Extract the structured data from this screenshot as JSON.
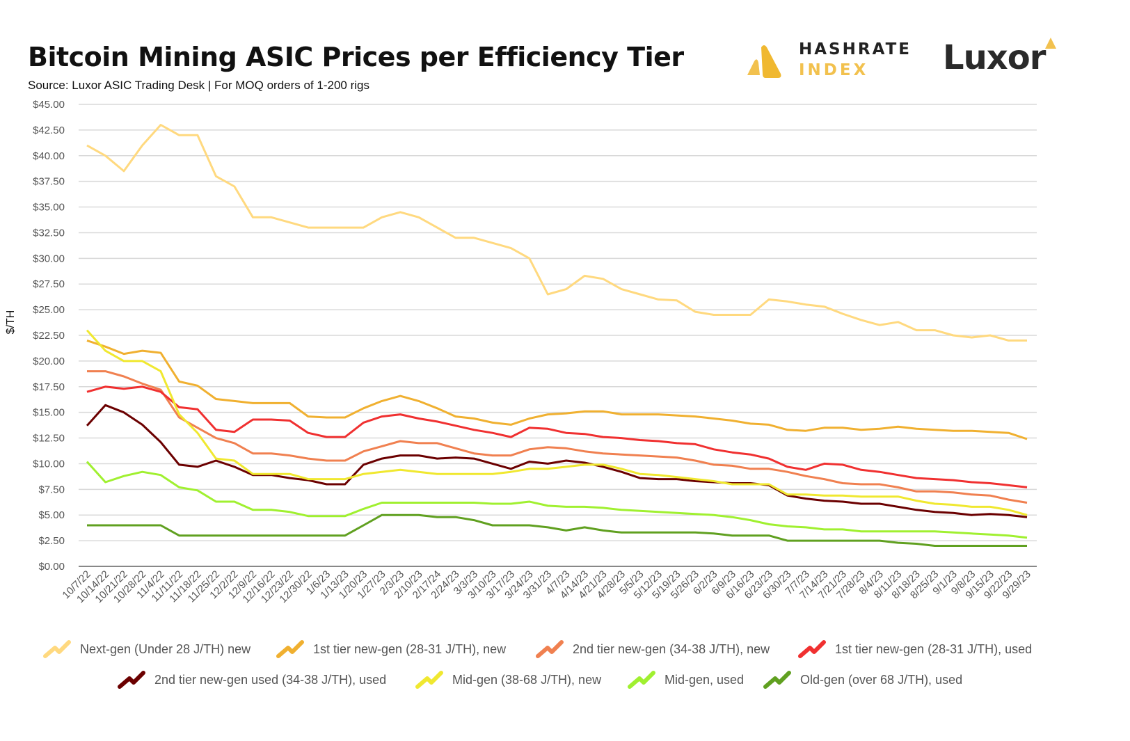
{
  "header": {
    "title": "Bitcoin Mining ASIC Prices per Efficiency Tier",
    "subtitle": "Source: Luxor ASIC Trading Desk | For MOQ orders of 1-200 rigs",
    "logos": [
      "HASHRATE INDEX",
      "Luxor"
    ]
  },
  "chart_data": {
    "type": "line",
    "title": "Bitcoin Mining ASIC Prices per Efficiency Tier",
    "subtitle": "Source: Luxor ASIC Trading Desk | For MOQ orders of 1-200 rigs",
    "xlabel": "",
    "ylabel": "$/TH",
    "ylim": [
      0,
      45
    ],
    "yticks": [
      "$0.00",
      "$2.50",
      "$5.00",
      "$7.50",
      "$10.00",
      "$12.50",
      "$15.00",
      "$17.50",
      "$20.00",
      "$22.50",
      "$25.00",
      "$27.50",
      "$30.00",
      "$32.50",
      "$35.00",
      "$37.50",
      "$40.00",
      "$42.50",
      "$45.00"
    ],
    "grid": true,
    "legend": "bottom",
    "categories": [
      "10/7/22",
      "10/14/22",
      "10/21/22",
      "10/28/22",
      "11/4/22",
      "11/11/22",
      "11/18/22",
      "11/25/22",
      "12/2/22",
      "12/9/22",
      "12/16/22",
      "12/23/22",
      "12/30/22",
      "1/6/23",
      "1/13/23",
      "1/20/23",
      "1/27/23",
      "2/3/23",
      "2/10/23",
      "2/17/24",
      "2/24/23",
      "3/3/23",
      "3/10/23",
      "3/17/23",
      "3/24/23",
      "3/31/23",
      "4/7/23",
      "4/14/23",
      "4/21/23",
      "4/28/23",
      "5/5/23",
      "5/12/23",
      "5/19/23",
      "5/26/23",
      "6/2/23",
      "6/9/23",
      "6/16/23",
      "6/23/23",
      "6/30/23",
      "7/7/23",
      "7/14/23",
      "7/21/23",
      "7/28/23",
      "8/4/23",
      "8/11/23",
      "8/18/23",
      "8/25/23",
      "9/1/23",
      "9/8/23",
      "9/15/23",
      "9/22/23",
      "9/29/23"
    ],
    "series": [
      {
        "name": "Next-gen (Under 28 J/TH) new",
        "color": "#FFD97F",
        "values": [
          41,
          40,
          38.5,
          41,
          43,
          42,
          42,
          38,
          37,
          34,
          34,
          33.5,
          33,
          33,
          33,
          33,
          34,
          34.5,
          34,
          33,
          32,
          32,
          31.5,
          31,
          30,
          26.5,
          27,
          28.3,
          28,
          27,
          26.5,
          26,
          25.9,
          24.8,
          24.5,
          24.5,
          24.5,
          26,
          25.8,
          25.5,
          25.3,
          24.6,
          24,
          23.5,
          23.8,
          23,
          23,
          22.5,
          22.3,
          22.5,
          22,
          22
        ]
      },
      {
        "name": "1st tier new-gen (28-31 J/TH), new",
        "color": "#F0B030",
        "values": [
          22,
          21.4,
          20.7,
          21,
          20.8,
          18,
          17.6,
          16.3,
          16.1,
          15.9,
          15.9,
          15.9,
          14.6,
          14.5,
          14.5,
          15.4,
          16.1,
          16.6,
          16.1,
          15.4,
          14.6,
          14.4,
          14,
          13.8,
          14.4,
          14.8,
          14.9,
          15.1,
          15.1,
          14.8,
          14.8,
          14.8,
          14.7,
          14.6,
          14.4,
          14.2,
          13.9,
          13.8,
          13.3,
          13.2,
          13.5,
          13.5,
          13.3,
          13.4,
          13.6,
          13.4,
          13.3,
          13.2,
          13.2,
          13.1,
          13,
          12.4
        ]
      },
      {
        "name": "2nd tier new-gen (34-38 J/TH), new",
        "color": "#F08050",
        "values": [
          19,
          19,
          18.5,
          17.8,
          17.2,
          14.5,
          13.5,
          12.5,
          12,
          11,
          11,
          10.8,
          10.5,
          10.3,
          10.3,
          11.2,
          11.7,
          12.2,
          12,
          12,
          11.5,
          11,
          10.8,
          10.8,
          11.4,
          11.6,
          11.5,
          11.2,
          11,
          10.9,
          10.8,
          10.7,
          10.6,
          10.3,
          9.9,
          9.8,
          9.5,
          9.5,
          9.2,
          8.8,
          8.5,
          8.1,
          8,
          8,
          7.7,
          7.3,
          7.3,
          7.2,
          7,
          6.9,
          6.5,
          6.2
        ]
      },
      {
        "name": "1st tier new-gen (28-31 J/TH), used",
        "color": "#F03030",
        "values": [
          17,
          17.5,
          17.3,
          17.5,
          17,
          15.5,
          15.3,
          13.3,
          13.1,
          14.3,
          14.3,
          14.2,
          13,
          12.6,
          12.6,
          14,
          14.6,
          14.8,
          14.4,
          14.1,
          13.7,
          13.3,
          13,
          12.6,
          13.5,
          13.4,
          13,
          12.9,
          12.6,
          12.5,
          12.3,
          12.2,
          12,
          11.9,
          11.4,
          11.1,
          10.9,
          10.5,
          9.7,
          9.4,
          10,
          9.9,
          9.4,
          9.2,
          8.9,
          8.6,
          8.5,
          8.4,
          8.2,
          8.1,
          7.9,
          7.7
        ]
      },
      {
        "name": "2nd tier new-gen used (34-38 J/TH), used",
        "color": "#6B0000",
        "values": [
          13.7,
          15.7,
          15,
          13.8,
          12.1,
          9.9,
          9.7,
          10.3,
          9.7,
          8.9,
          8.9,
          8.6,
          8.4,
          8,
          8,
          9.9,
          10.5,
          10.8,
          10.8,
          10.5,
          10.6,
          10.5,
          10,
          9.5,
          10.2,
          10,
          10.3,
          10.1,
          9.7,
          9.2,
          8.6,
          8.5,
          8.5,
          8.3,
          8.2,
          8.1,
          8.1,
          7.9,
          6.9,
          6.6,
          6.4,
          6.3,
          6.1,
          6.1,
          5.8,
          5.5,
          5.3,
          5.2,
          5,
          5.1,
          5,
          4.8
        ]
      },
      {
        "name": "Mid-gen (38-68 J/TH), new",
        "color": "#F0E830",
        "values": [
          23,
          21,
          20,
          20,
          19,
          14.8,
          13,
          10.5,
          10.3,
          9,
          9,
          9,
          8.5,
          8.5,
          8.5,
          9,
          9.2,
          9.4,
          9.2,
          9,
          9,
          9,
          9,
          9.2,
          9.5,
          9.5,
          9.7,
          9.9,
          9.9,
          9.5,
          9,
          8.9,
          8.7,
          8.5,
          8.3,
          8,
          8,
          8,
          7,
          7,
          6.9,
          6.9,
          6.8,
          6.8,
          6.8,
          6.4,
          6.1,
          6,
          5.8,
          5.8,
          5.5,
          5
        ]
      },
      {
        "name": "Mid-gen, used",
        "color": "#A0F030",
        "values": [
          10.2,
          8.2,
          8.8,
          9.2,
          8.9,
          7.7,
          7.4,
          6.3,
          6.3,
          5.5,
          5.5,
          5.3,
          4.9,
          4.9,
          4.9,
          5.6,
          6.2,
          6.2,
          6.2,
          6.2,
          6.2,
          6.2,
          6.1,
          6.1,
          6.3,
          5.9,
          5.8,
          5.8,
          5.7,
          5.5,
          5.4,
          5.3,
          5.2,
          5.1,
          5,
          4.8,
          4.5,
          4.1,
          3.9,
          3.8,
          3.6,
          3.6,
          3.4,
          3.4,
          3.4,
          3.4,
          3.4,
          3.3,
          3.2,
          3.1,
          3,
          2.8
        ]
      },
      {
        "name": "Old-gen (over 68 J/TH), used",
        "color": "#60A020",
        "values": [
          4,
          4,
          4,
          4,
          4,
          3,
          3,
          3,
          3,
          3,
          3,
          3,
          3,
          3,
          3,
          4,
          5,
          5,
          5,
          4.8,
          4.8,
          4.5,
          4,
          4,
          4,
          3.8,
          3.5,
          3.8,
          3.5,
          3.3,
          3.3,
          3.3,
          3.3,
          3.3,
          3.2,
          3,
          3,
          3,
          2.5,
          2.5,
          2.5,
          2.5,
          2.5,
          2.5,
          2.3,
          2.2,
          2,
          2,
          2,
          2,
          2,
          2
        ]
      }
    ]
  }
}
